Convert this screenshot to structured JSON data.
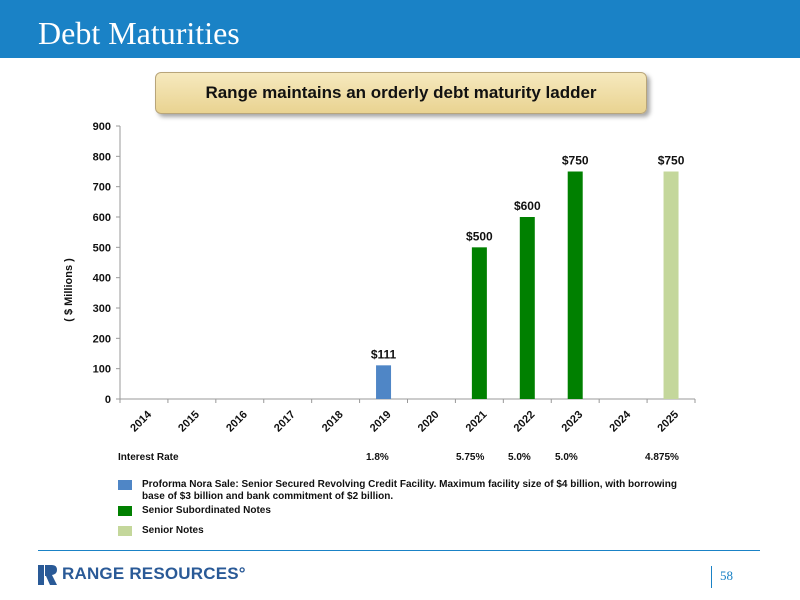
{
  "slide": {
    "title": "Debt Maturities",
    "banner": "Range maintains an orderly debt maturity ladder",
    "page_number": "58"
  },
  "rates": {
    "label": "Interest Rate",
    "values": [
      "1.8%",
      "5.75%",
      "5.0%",
      "5.0%",
      "4.875%"
    ]
  },
  "legend": [
    {
      "label": "Proforma Nora Sale: Senior Secured Revolving Credit Facility. Maximum facility size of $4 billion, with borrowing base of $3 billion and bank commitment of $2 billion.",
      "color": "#4f86c6"
    },
    {
      "label": "Senior Subordinated Notes",
      "color": "#008000"
    },
    {
      "label": "Senior Notes",
      "color": "#c4d79b"
    }
  ],
  "logo": {
    "text": "RANGE RESOURCES°"
  },
  "chart_data": {
    "type": "bar",
    "categories": [
      "2014",
      "2015",
      "2016",
      "2017",
      "2018",
      "2019",
      "2020",
      "2021",
      "2022",
      "2023",
      "2024",
      "2025"
    ],
    "values": [
      0,
      0,
      0,
      0,
      0,
      111,
      0,
      500,
      600,
      750,
      0,
      750
    ],
    "bar_colors": [
      "",
      "",
      "",
      "",
      "",
      "#4f86c6",
      "",
      "#008000",
      "#008000",
      "#008000",
      "",
      "#c4d79b"
    ],
    "data_labels": [
      "",
      "",
      "",
      "",
      "",
      "$111",
      "",
      "$500",
      "$600",
      "$750",
      "",
      "$750"
    ],
    "ylabel": "( $ Millions )",
    "ylim": [
      0,
      900
    ],
    "yticks": [
      0,
      100,
      200,
      300,
      400,
      500,
      600,
      700,
      800,
      900
    ],
    "grid": false,
    "legend_position": "bottom"
  }
}
